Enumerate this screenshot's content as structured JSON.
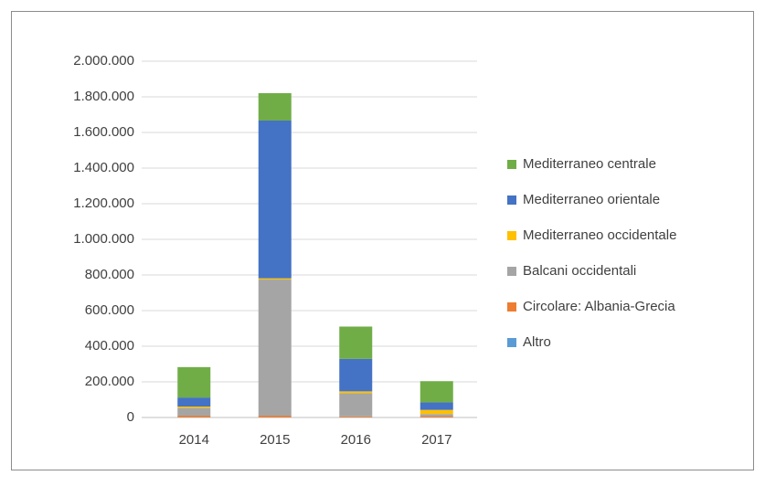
{
  "chart_data": {
    "type": "stacked_bar",
    "categories": [
      "2014",
      "2015",
      "2016",
      "2017"
    ],
    "series": [
      {
        "name": "Mediterraneo centrale",
        "color": "#70ad47",
        "values": [
          170664,
          153946,
          181376,
          118962
        ]
      },
      {
        "name": "Mediterraneo orientale",
        "color": "#4472c4",
        "values": [
          50834,
          885386,
          182277,
          42319
        ]
      },
      {
        "name": "Mediterraneo occidentale",
        "color": "#ffc000",
        "values": [
          7842,
          7164,
          10231,
          23143
        ]
      },
      {
        "name": "Balcani occidentali",
        "color": "#a5a5a5",
        "values": [
          43357,
          764038,
          130325,
          12179
        ]
      },
      {
        "name": "Circolare: Albania-Grecia",
        "color": "#ed7d31",
        "values": [
          8841,
          8932,
          5121,
          6396
        ]
      },
      {
        "name": "Altro",
        "color": "#5b9bd5",
        "values": [
          1300,
          1200,
          1000,
          900
        ]
      }
    ],
    "ylim": [
      0,
      2000000
    ],
    "yticks": [
      0,
      {
        "value": 200000,
        "label": "200.000"
      },
      {
        "value": 400000,
        "label": "400.000"
      },
      {
        "value": 600000,
        "label": "600.000"
      },
      {
        "value": 800000,
        "label": "800.000"
      },
      {
        "value": 1000000,
        "label": "1.000.000"
      },
      {
        "value": 1200000,
        "label": "1.200.000"
      },
      {
        "value": 1400000,
        "label": "1.400.000"
      },
      {
        "value": 1600000,
        "label": "1.600.000"
      },
      {
        "value": 1800000,
        "label": "1.800.000"
      },
      {
        "value": 2000000,
        "label": "2.000.000"
      }
    ],
    "grid": true,
    "legend": "right"
  }
}
